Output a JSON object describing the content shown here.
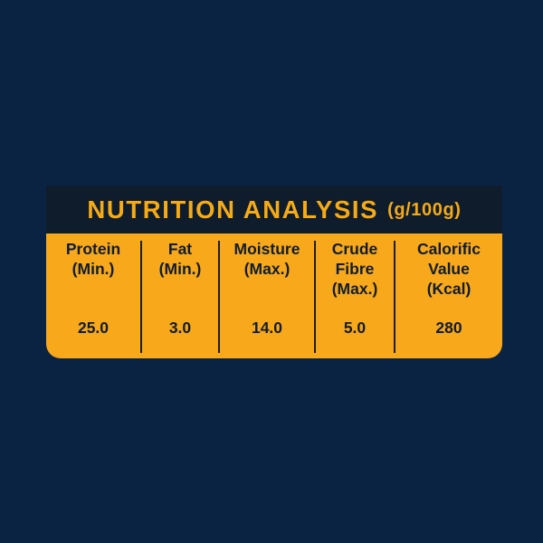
{
  "header": {
    "title": "NUTRITION ANALYSIS",
    "unit": "(g/100g)"
  },
  "columns": [
    {
      "lines": [
        "Protein",
        "(Min.)"
      ],
      "value": "25.0"
    },
    {
      "lines": [
        "Fat",
        "(Min.)"
      ],
      "value": "3.0"
    },
    {
      "lines": [
        "Moisture",
        "(Max.)"
      ],
      "value": "14.0"
    },
    {
      "lines": [
        "Crude",
        "Fibre",
        "(Max.)"
      ],
      "value": "5.0"
    },
    {
      "lines": [
        "Calorific",
        "Value",
        "(Kcal)"
      ],
      "value": "280"
    }
  ],
  "colors": {
    "background": "#0b2343",
    "header_bg": "#0f1c2c",
    "accent": "#f5ab16",
    "table_bg": "#f7a81b",
    "text_dark": "#0f1c2c"
  }
}
